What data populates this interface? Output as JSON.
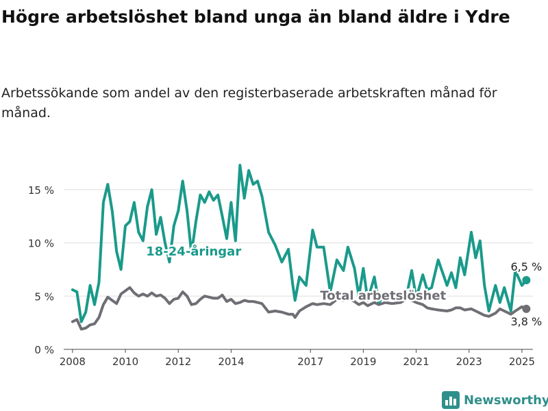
{
  "title": "Högre arbetslöshet bland unga än bland äldre i Ydre",
  "subtitle": "Arbetssökande som andel av den registerbaserade arbetskraften månad för månad.",
  "brand": {
    "name": "Newsworthy",
    "icon": "bar-chart-logo-icon"
  },
  "colors": {
    "youth": "#1a9a8a",
    "total": "#6e6e74",
    "grid": "#dddddd",
    "brand": "#2f8f8a"
  },
  "chart_data": {
    "type": "line",
    "x_ticks": [
      "2008",
      "2010",
      "2012",
      "2014",
      "2017",
      "2019",
      "2021",
      "2023",
      "2025"
    ],
    "y_ticks": [
      "0 %",
      "5 %",
      "10 %",
      "15 %"
    ],
    "ylim": [
      0,
      17.5
    ],
    "xlim": [
      "2007-09",
      "2025-06"
    ],
    "grid": true,
    "legend": "inline labels",
    "series": [
      {
        "name": "18-24-åringar",
        "key": "youth",
        "label_month": "2012-08",
        "end_label": "6,5 %",
        "points": [
          [
            "2008-01",
            5.6
          ],
          [
            "2008-03",
            5.4
          ],
          [
            "2008-05",
            2.6
          ],
          [
            "2008-07",
            3.5
          ],
          [
            "2008-09",
            6.0
          ],
          [
            "2008-11",
            4.2
          ],
          [
            "2009-01",
            6.3
          ],
          [
            "2009-03",
            13.8
          ],
          [
            "2009-05",
            15.5
          ],
          [
            "2009-07",
            13.0
          ],
          [
            "2009-09",
            9.2
          ],
          [
            "2009-11",
            7.5
          ],
          [
            "2010-01",
            11.6
          ],
          [
            "2010-03",
            12.0
          ],
          [
            "2010-05",
            13.8
          ],
          [
            "2010-07",
            11.0
          ],
          [
            "2010-09",
            10.2
          ],
          [
            "2010-11",
            13.4
          ],
          [
            "2011-01",
            15.0
          ],
          [
            "2011-03",
            10.8
          ],
          [
            "2011-05",
            12.4
          ],
          [
            "2011-07",
            10.0
          ],
          [
            "2011-09",
            8.2
          ],
          [
            "2011-11",
            11.6
          ],
          [
            "2012-01",
            13.0
          ],
          [
            "2012-03",
            15.8
          ],
          [
            "2012-05",
            13.0
          ],
          [
            "2012-07",
            9.0
          ],
          [
            "2012-09",
            12.0
          ],
          [
            "2012-11",
            14.5
          ],
          [
            "2013-01",
            13.8
          ],
          [
            "2013-03",
            14.8
          ],
          [
            "2013-05",
            14.0
          ],
          [
            "2013-07",
            14.5
          ],
          [
            "2013-09",
            12.5
          ],
          [
            "2013-11",
            10.4
          ],
          [
            "2014-01",
            13.8
          ],
          [
            "2014-03",
            10.2
          ],
          [
            "2014-05",
            17.3
          ],
          [
            "2014-07",
            14.2
          ],
          [
            "2014-09",
            16.8
          ],
          [
            "2014-11",
            15.5
          ],
          [
            "2015-01",
            15.8
          ],
          [
            "2015-03",
            14.4
          ],
          [
            "2015-06",
            11.0
          ],
          [
            "2015-09",
            9.8
          ],
          [
            "2015-12",
            8.2
          ],
          [
            "2016-03",
            9.4
          ],
          [
            "2016-05",
            6.0
          ],
          [
            "2016-06",
            4.6
          ],
          [
            "2016-08",
            6.8
          ],
          [
            "2016-11",
            6.0
          ],
          [
            "2017-02",
            11.2
          ],
          [
            "2017-04",
            9.6
          ],
          [
            "2017-07",
            9.6
          ],
          [
            "2017-10",
            5.4
          ],
          [
            "2018-01",
            8.4
          ],
          [
            "2018-04",
            7.4
          ],
          [
            "2018-06",
            9.6
          ],
          [
            "2018-09",
            7.6
          ],
          [
            "2018-11",
            5.0
          ],
          [
            "2019-01",
            7.6
          ],
          [
            "2019-03",
            4.6
          ],
          [
            "2019-06",
            6.8
          ],
          [
            "2019-08",
            4.4
          ],
          [
            "2019-11",
            5.2
          ],
          [
            "2020-02",
            4.8
          ],
          [
            "2020-06",
            4.9
          ],
          [
            "2020-09",
            5.4
          ],
          [
            "2020-11",
            7.4
          ],
          [
            "2021-01",
            4.8
          ],
          [
            "2021-04",
            7.0
          ],
          [
            "2021-06",
            5.6
          ],
          [
            "2021-08",
            5.8
          ],
          [
            "2021-11",
            8.4
          ],
          [
            "2022-03",
            6.0
          ],
          [
            "2022-05",
            7.2
          ],
          [
            "2022-07",
            5.8
          ],
          [
            "2022-09",
            8.6
          ],
          [
            "2022-11",
            7.0
          ],
          [
            "2023-02",
            11.0
          ],
          [
            "2023-04",
            8.6
          ],
          [
            "2023-06",
            10.2
          ],
          [
            "2023-08",
            6.0
          ],
          [
            "2023-10",
            3.6
          ],
          [
            "2024-01",
            6.0
          ],
          [
            "2024-03",
            4.4
          ],
          [
            "2024-05",
            5.8
          ],
          [
            "2024-08",
            3.6
          ],
          [
            "2024-10",
            7.4
          ],
          [
            "2025-01",
            6.0
          ],
          [
            "2025-03",
            6.5
          ]
        ]
      },
      {
        "name": "Total arbetslöshet",
        "key": "total",
        "label_month": "2019-10",
        "end_label": "3,8 %",
        "points": [
          [
            "2008-01",
            2.6
          ],
          [
            "2008-03",
            2.8
          ],
          [
            "2008-05",
            1.9
          ],
          [
            "2008-07",
            2.0
          ],
          [
            "2008-09",
            2.3
          ],
          [
            "2008-11",
            2.4
          ],
          [
            "2009-01",
            3.0
          ],
          [
            "2009-03",
            4.2
          ],
          [
            "2009-05",
            4.9
          ],
          [
            "2009-07",
            4.6
          ],
          [
            "2009-09",
            4.3
          ],
          [
            "2009-11",
            5.2
          ],
          [
            "2010-01",
            5.5
          ],
          [
            "2010-03",
            5.8
          ],
          [
            "2010-05",
            5.3
          ],
          [
            "2010-07",
            5.0
          ],
          [
            "2010-09",
            5.2
          ],
          [
            "2010-11",
            5.0
          ],
          [
            "2011-01",
            5.3
          ],
          [
            "2011-03",
            5.0
          ],
          [
            "2011-05",
            5.1
          ],
          [
            "2011-07",
            4.8
          ],
          [
            "2011-09",
            4.3
          ],
          [
            "2011-11",
            4.7
          ],
          [
            "2012-01",
            4.8
          ],
          [
            "2012-03",
            5.4
          ],
          [
            "2012-05",
            5.0
          ],
          [
            "2012-07",
            4.2
          ],
          [
            "2012-09",
            4.3
          ],
          [
            "2012-11",
            4.7
          ],
          [
            "2013-01",
            5.0
          ],
          [
            "2013-03",
            4.9
          ],
          [
            "2013-05",
            4.8
          ],
          [
            "2013-07",
            4.8
          ],
          [
            "2013-09",
            5.1
          ],
          [
            "2013-11",
            4.5
          ],
          [
            "2014-01",
            4.7
          ],
          [
            "2014-03",
            4.3
          ],
          [
            "2014-05",
            4.4
          ],
          [
            "2014-07",
            4.6
          ],
          [
            "2014-09",
            4.5
          ],
          [
            "2014-11",
            4.5
          ],
          [
            "2015-01",
            4.4
          ],
          [
            "2015-03",
            4.3
          ],
          [
            "2015-06",
            3.5
          ],
          [
            "2015-09",
            3.6
          ],
          [
            "2015-12",
            3.5
          ],
          [
            "2016-03",
            3.3
          ],
          [
            "2016-05",
            3.3
          ],
          [
            "2016-06",
            3.0
          ],
          [
            "2016-08",
            3.6
          ],
          [
            "2016-11",
            4.0
          ],
          [
            "2017-02",
            4.3
          ],
          [
            "2017-04",
            4.2
          ],
          [
            "2017-07",
            4.3
          ],
          [
            "2017-10",
            4.2
          ],
          [
            "2018-01",
            4.7
          ],
          [
            "2018-04",
            4.6
          ],
          [
            "2018-06",
            4.8
          ],
          [
            "2018-09",
            4.5
          ],
          [
            "2018-11",
            4.2
          ],
          [
            "2019-01",
            4.4
          ],
          [
            "2019-03",
            4.1
          ],
          [
            "2019-06",
            4.4
          ],
          [
            "2019-08",
            4.2
          ],
          [
            "2019-11",
            4.4
          ],
          [
            "2020-02",
            4.3
          ],
          [
            "2020-06",
            4.4
          ],
          [
            "2020-09",
            4.8
          ],
          [
            "2020-11",
            4.6
          ],
          [
            "2021-01",
            4.4
          ],
          [
            "2021-04",
            4.2
          ],
          [
            "2021-06",
            3.9
          ],
          [
            "2021-08",
            3.8
          ],
          [
            "2021-11",
            3.7
          ],
          [
            "2022-03",
            3.6
          ],
          [
            "2022-05",
            3.7
          ],
          [
            "2022-07",
            3.9
          ],
          [
            "2022-09",
            3.9
          ],
          [
            "2022-11",
            3.7
          ],
          [
            "2023-02",
            3.8
          ],
          [
            "2023-04",
            3.6
          ],
          [
            "2023-06",
            3.4
          ],
          [
            "2023-08",
            3.2
          ],
          [
            "2023-10",
            3.1
          ],
          [
            "2024-01",
            3.4
          ],
          [
            "2024-03",
            3.8
          ],
          [
            "2024-05",
            3.6
          ],
          [
            "2024-08",
            3.3
          ],
          [
            "2024-10",
            3.6
          ],
          [
            "2025-01",
            4.0
          ],
          [
            "2025-03",
            3.8
          ]
        ]
      }
    ]
  }
}
